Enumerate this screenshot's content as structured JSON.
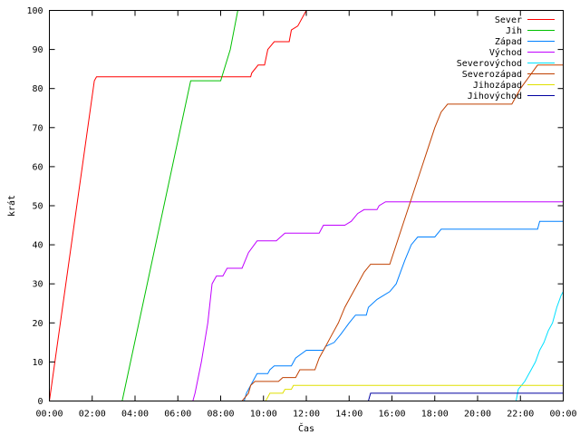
{
  "chart_data": {
    "type": "line",
    "xlabel": "Čas",
    "ylabel": "krát",
    "x_unit": "hours",
    "xlim": [
      0,
      24
    ],
    "ylim": [
      0,
      100
    ],
    "x_tick_labels": [
      "00:00",
      "02:00",
      "04:00",
      "06:00",
      "08:00",
      "10:00",
      "12:00",
      "14:00",
      "16:00",
      "18:00",
      "20:00",
      "22:00",
      "00:00"
    ],
    "y_ticks": [
      0,
      10,
      20,
      30,
      40,
      50,
      60,
      70,
      80,
      90,
      100
    ],
    "grid": false,
    "legend_position": "top-right",
    "series": [
      {
        "name": "Sever",
        "color": "#ff0000",
        "points": [
          [
            0.0,
            0
          ],
          [
            2.1,
            82
          ],
          [
            2.2,
            83
          ],
          [
            9.4,
            83
          ],
          [
            9.45,
            84
          ],
          [
            9.75,
            86
          ],
          [
            10.05,
            86
          ],
          [
            10.2,
            90
          ],
          [
            10.5,
            92
          ],
          [
            11.2,
            92
          ],
          [
            11.3,
            95
          ],
          [
            11.6,
            96
          ],
          [
            12.0,
            100
          ]
        ]
      },
      {
        "name": "Jih",
        "color": "#00c000",
        "points": [
          [
            3.4,
            0
          ],
          [
            6.6,
            82
          ],
          [
            8.0,
            82
          ],
          [
            8.45,
            90
          ],
          [
            8.8,
            100
          ]
        ]
      },
      {
        "name": "Západ",
        "color": "#0080ff",
        "points": [
          [
            9.1,
            0
          ],
          [
            9.2,
            2
          ],
          [
            9.4,
            4
          ],
          [
            9.6,
            6
          ],
          [
            9.7,
            7
          ],
          [
            10.2,
            7
          ],
          [
            10.3,
            8
          ],
          [
            10.5,
            9
          ],
          [
            11.3,
            9
          ],
          [
            11.5,
            11
          ],
          [
            12.0,
            13
          ],
          [
            12.8,
            13
          ],
          [
            12.9,
            14
          ],
          [
            13.3,
            15
          ],
          [
            13.6,
            17
          ],
          [
            14.0,
            20
          ],
          [
            14.3,
            22
          ],
          [
            14.8,
            22
          ],
          [
            14.9,
            24
          ],
          [
            15.3,
            26
          ],
          [
            15.6,
            27
          ],
          [
            15.9,
            28
          ],
          [
            16.2,
            30
          ],
          [
            16.4,
            33
          ],
          [
            16.6,
            36
          ],
          [
            16.9,
            40
          ],
          [
            17.2,
            42
          ],
          [
            18.0,
            42
          ],
          [
            18.3,
            44
          ],
          [
            22.8,
            44
          ],
          [
            22.9,
            46
          ],
          [
            24.0,
            46
          ]
        ]
      },
      {
        "name": "Východ",
        "color": "#c000ff",
        "points": [
          [
            6.7,
            0
          ],
          [
            6.8,
            2
          ],
          [
            7.1,
            10
          ],
          [
            7.4,
            20
          ],
          [
            7.6,
            30
          ],
          [
            7.8,
            32
          ],
          [
            8.1,
            32
          ],
          [
            8.3,
            34
          ],
          [
            9.0,
            34
          ],
          [
            9.3,
            38
          ],
          [
            9.7,
            41
          ],
          [
            10.6,
            41
          ],
          [
            10.8,
            42
          ],
          [
            11.0,
            43
          ],
          [
            12.6,
            43
          ],
          [
            12.8,
            45
          ],
          [
            13.8,
            45
          ],
          [
            14.1,
            46
          ],
          [
            14.4,
            48
          ],
          [
            14.7,
            49
          ],
          [
            15.3,
            49
          ],
          [
            15.4,
            50
          ],
          [
            15.7,
            51
          ],
          [
            24.0,
            51
          ]
        ]
      },
      {
        "name": "Severovýchod",
        "color": "#00e0ff",
        "points": [
          [
            21.8,
            0
          ],
          [
            21.9,
            3
          ],
          [
            22.2,
            5
          ],
          [
            22.5,
            8
          ],
          [
            22.7,
            10
          ],
          [
            22.9,
            13
          ],
          [
            23.1,
            15
          ],
          [
            23.3,
            18
          ],
          [
            23.5,
            20
          ],
          [
            23.7,
            24
          ],
          [
            23.9,
            27
          ],
          [
            24.0,
            28
          ]
        ]
      },
      {
        "name": "Severozápad",
        "color": "#c04000",
        "points": [
          [
            9.0,
            0
          ],
          [
            9.3,
            2
          ],
          [
            9.4,
            4
          ],
          [
            9.6,
            5
          ],
          [
            10.7,
            5
          ],
          [
            10.9,
            6
          ],
          [
            11.5,
            6
          ],
          [
            11.7,
            8
          ],
          [
            12.4,
            8
          ],
          [
            12.6,
            11
          ],
          [
            12.9,
            14
          ],
          [
            13.2,
            17
          ],
          [
            13.5,
            20
          ],
          [
            13.8,
            24
          ],
          [
            14.1,
            27
          ],
          [
            14.4,
            30
          ],
          [
            14.7,
            33
          ],
          [
            15.0,
            35
          ],
          [
            15.9,
            35
          ],
          [
            16.2,
            40
          ],
          [
            16.5,
            45
          ],
          [
            16.8,
            50
          ],
          [
            17.1,
            55
          ],
          [
            17.4,
            60
          ],
          [
            17.7,
            65
          ],
          [
            18.0,
            70
          ],
          [
            18.3,
            74
          ],
          [
            18.6,
            76
          ],
          [
            21.6,
            76
          ],
          [
            22.0,
            80
          ],
          [
            22.4,
            83
          ],
          [
            22.8,
            86
          ],
          [
            24.0,
            86
          ]
        ]
      },
      {
        "name": "Jihozápad",
        "color": "#e0e000",
        "points": [
          [
            10.1,
            0
          ],
          [
            10.2,
            1
          ],
          [
            10.3,
            2
          ],
          [
            10.9,
            2
          ],
          [
            11.0,
            3
          ],
          [
            11.3,
            3
          ],
          [
            11.4,
            4
          ],
          [
            24.0,
            4
          ]
        ]
      },
      {
        "name": "Jihovýchod",
        "color": "#0000a0",
        "points": [
          [
            14.9,
            0
          ],
          [
            15.0,
            2
          ],
          [
            24.0,
            2
          ]
        ]
      }
    ]
  }
}
